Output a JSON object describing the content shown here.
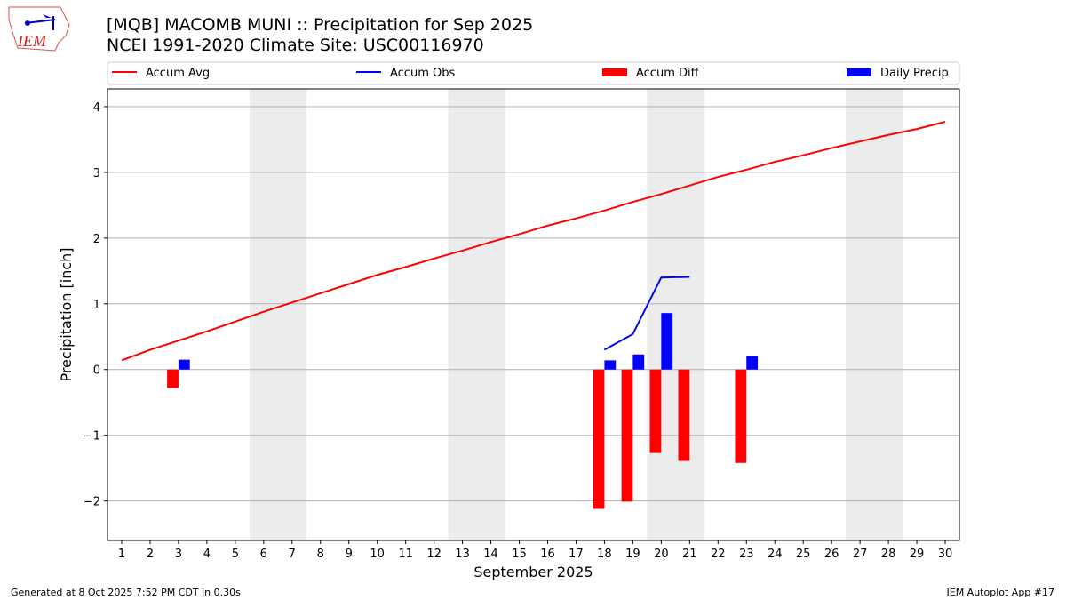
{
  "logo_text": "IEM",
  "footer": {
    "left": "Generated at 8 Oct 2025 7:52 PM CDT in 0.30s",
    "right": "IEM Autoplot App #17"
  },
  "chart_data": {
    "type": "bar",
    "title": "[MQB] MACOMB MUNI :: Precipitation for Sep 2025",
    "subtitle": "NCEI 1991-2020 Climate Site: USC00116970",
    "xlabel": "September 2025",
    "ylabel": "Precipitation [inch]",
    "ylim": [
      -2.6,
      4.27
    ],
    "xlim": [
      0.5,
      30.5
    ],
    "yticks": [
      -2,
      -1,
      0,
      1,
      2,
      3,
      4
    ],
    "ytick_labels": [
      "−2",
      "−1",
      "0",
      "1",
      "2",
      "3",
      "4"
    ],
    "x": [
      1,
      2,
      3,
      4,
      5,
      6,
      7,
      8,
      9,
      10,
      11,
      12,
      13,
      14,
      15,
      16,
      17,
      18,
      19,
      20,
      21,
      22,
      23,
      24,
      25,
      26,
      27,
      28,
      29,
      30
    ],
    "weekend_shading": [
      [
        6,
        7
      ],
      [
        13,
        14
      ],
      [
        20,
        21
      ],
      [
        27,
        28
      ]
    ],
    "grid": "horizontal",
    "legend": {
      "placement": "top",
      "entries": [
        {
          "label": "Accum Avg",
          "kind": "line",
          "color": "#ff0000"
        },
        {
          "label": "Accum Obs",
          "kind": "line",
          "color": "#0000ff"
        },
        {
          "label": "Accum Diff",
          "kind": "bar",
          "color": "#ff0000"
        },
        {
          "label": "Daily Precip",
          "kind": "bar",
          "color": "#0000ff"
        }
      ]
    },
    "series": [
      {
        "name": "Accum Avg",
        "type": "line",
        "color": "#ff0000",
        "x": [
          1,
          2,
          3,
          4,
          5,
          6,
          7,
          8,
          9,
          10,
          11,
          12,
          13,
          14,
          15,
          16,
          17,
          18,
          19,
          20,
          21,
          22,
          23,
          24,
          25,
          26,
          27,
          28,
          29,
          30
        ],
        "values": [
          0.14,
          0.3,
          0.44,
          0.58,
          0.73,
          0.88,
          1.02,
          1.16,
          1.3,
          1.44,
          1.56,
          1.69,
          1.81,
          1.94,
          2.06,
          2.19,
          2.3,
          2.42,
          2.55,
          2.67,
          2.8,
          2.93,
          3.04,
          3.16,
          3.26,
          3.37,
          3.47,
          3.57,
          3.66,
          3.77
        ]
      },
      {
        "name": "Accum Obs",
        "type": "line",
        "color": "#0000ff",
        "x": [
          18,
          19,
          20,
          21
        ],
        "values": [
          0.3,
          0.54,
          1.4,
          1.41
        ]
      },
      {
        "name": "Accum Diff",
        "type": "bar",
        "color": "#ff0000",
        "x": [
          3,
          18,
          19,
          20,
          21,
          23
        ],
        "values": [
          -0.28,
          -2.12,
          -2.01,
          -1.27,
          -1.39,
          -1.42
        ]
      },
      {
        "name": "Daily Precip",
        "type": "bar",
        "color": "#0000ff",
        "x": [
          3,
          18,
          19,
          20,
          23
        ],
        "values": [
          0.15,
          0.14,
          0.23,
          0.86,
          0.21
        ]
      }
    ]
  }
}
